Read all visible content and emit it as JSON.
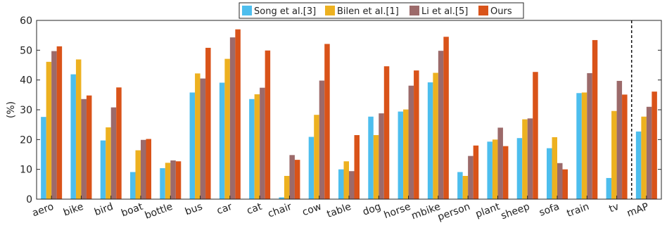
{
  "chart_data": {
    "type": "bar",
    "title": "",
    "xlabel": "",
    "ylabel": "(%)",
    "ylim": [
      0,
      60
    ],
    "yticks": [
      0,
      10,
      20,
      30,
      40,
      50,
      60
    ],
    "grid": false,
    "legend_position": "top-right",
    "separator_before_category": "mAP",
    "categories": [
      "aero",
      "bike",
      "bird",
      "boat",
      "bottle",
      "bus",
      "car",
      "cat",
      "chair",
      "cow",
      "table",
      "dog",
      "horse",
      "mbike",
      "person",
      "plant",
      "sheep",
      "sofa",
      "train",
      "tv",
      "mAP"
    ],
    "series": [
      {
        "name": "Song et al.[3]",
        "color": "#4DBEEE",
        "values": [
          27.6,
          41.9,
          19.7,
          9.1,
          10.4,
          35.8,
          39.1,
          33.6,
          0.6,
          20.9,
          10.0,
          27.7,
          29.4,
          39.2,
          9.1,
          19.3,
          20.5,
          17.1,
          35.6,
          7.1,
          22.7
        ]
      },
      {
        "name": "Bilen et al.[1]",
        "color": "#EDB120",
        "values": [
          46.1,
          46.9,
          24.1,
          16.4,
          12.2,
          42.2,
          47.1,
          35.2,
          7.8,
          28.3,
          12.7,
          21.5,
          30.1,
          42.4,
          7.8,
          20.0,
          26.8,
          20.8,
          35.8,
          29.6,
          27.7
        ]
      },
      {
        "name": "Li et al.[5]",
        "color": "#9C6A6A",
        "values": [
          49.7,
          33.6,
          30.8,
          19.9,
          13.0,
          40.5,
          54.3,
          37.4,
          14.8,
          39.8,
          9.4,
          28.8,
          38.1,
          49.8,
          14.5,
          24.0,
          27.1,
          12.1,
          42.3,
          39.7,
          31.0
        ]
      },
      {
        "name": "Ours",
        "color": "#D95319",
        "values": [
          51.3,
          34.8,
          37.5,
          20.2,
          12.7,
          50.8,
          57.0,
          49.9,
          13.2,
          52.1,
          21.5,
          44.6,
          43.2,
          54.5,
          18.0,
          17.8,
          42.7,
          10.0,
          53.4,
          35.1,
          36.1
        ]
      }
    ]
  }
}
